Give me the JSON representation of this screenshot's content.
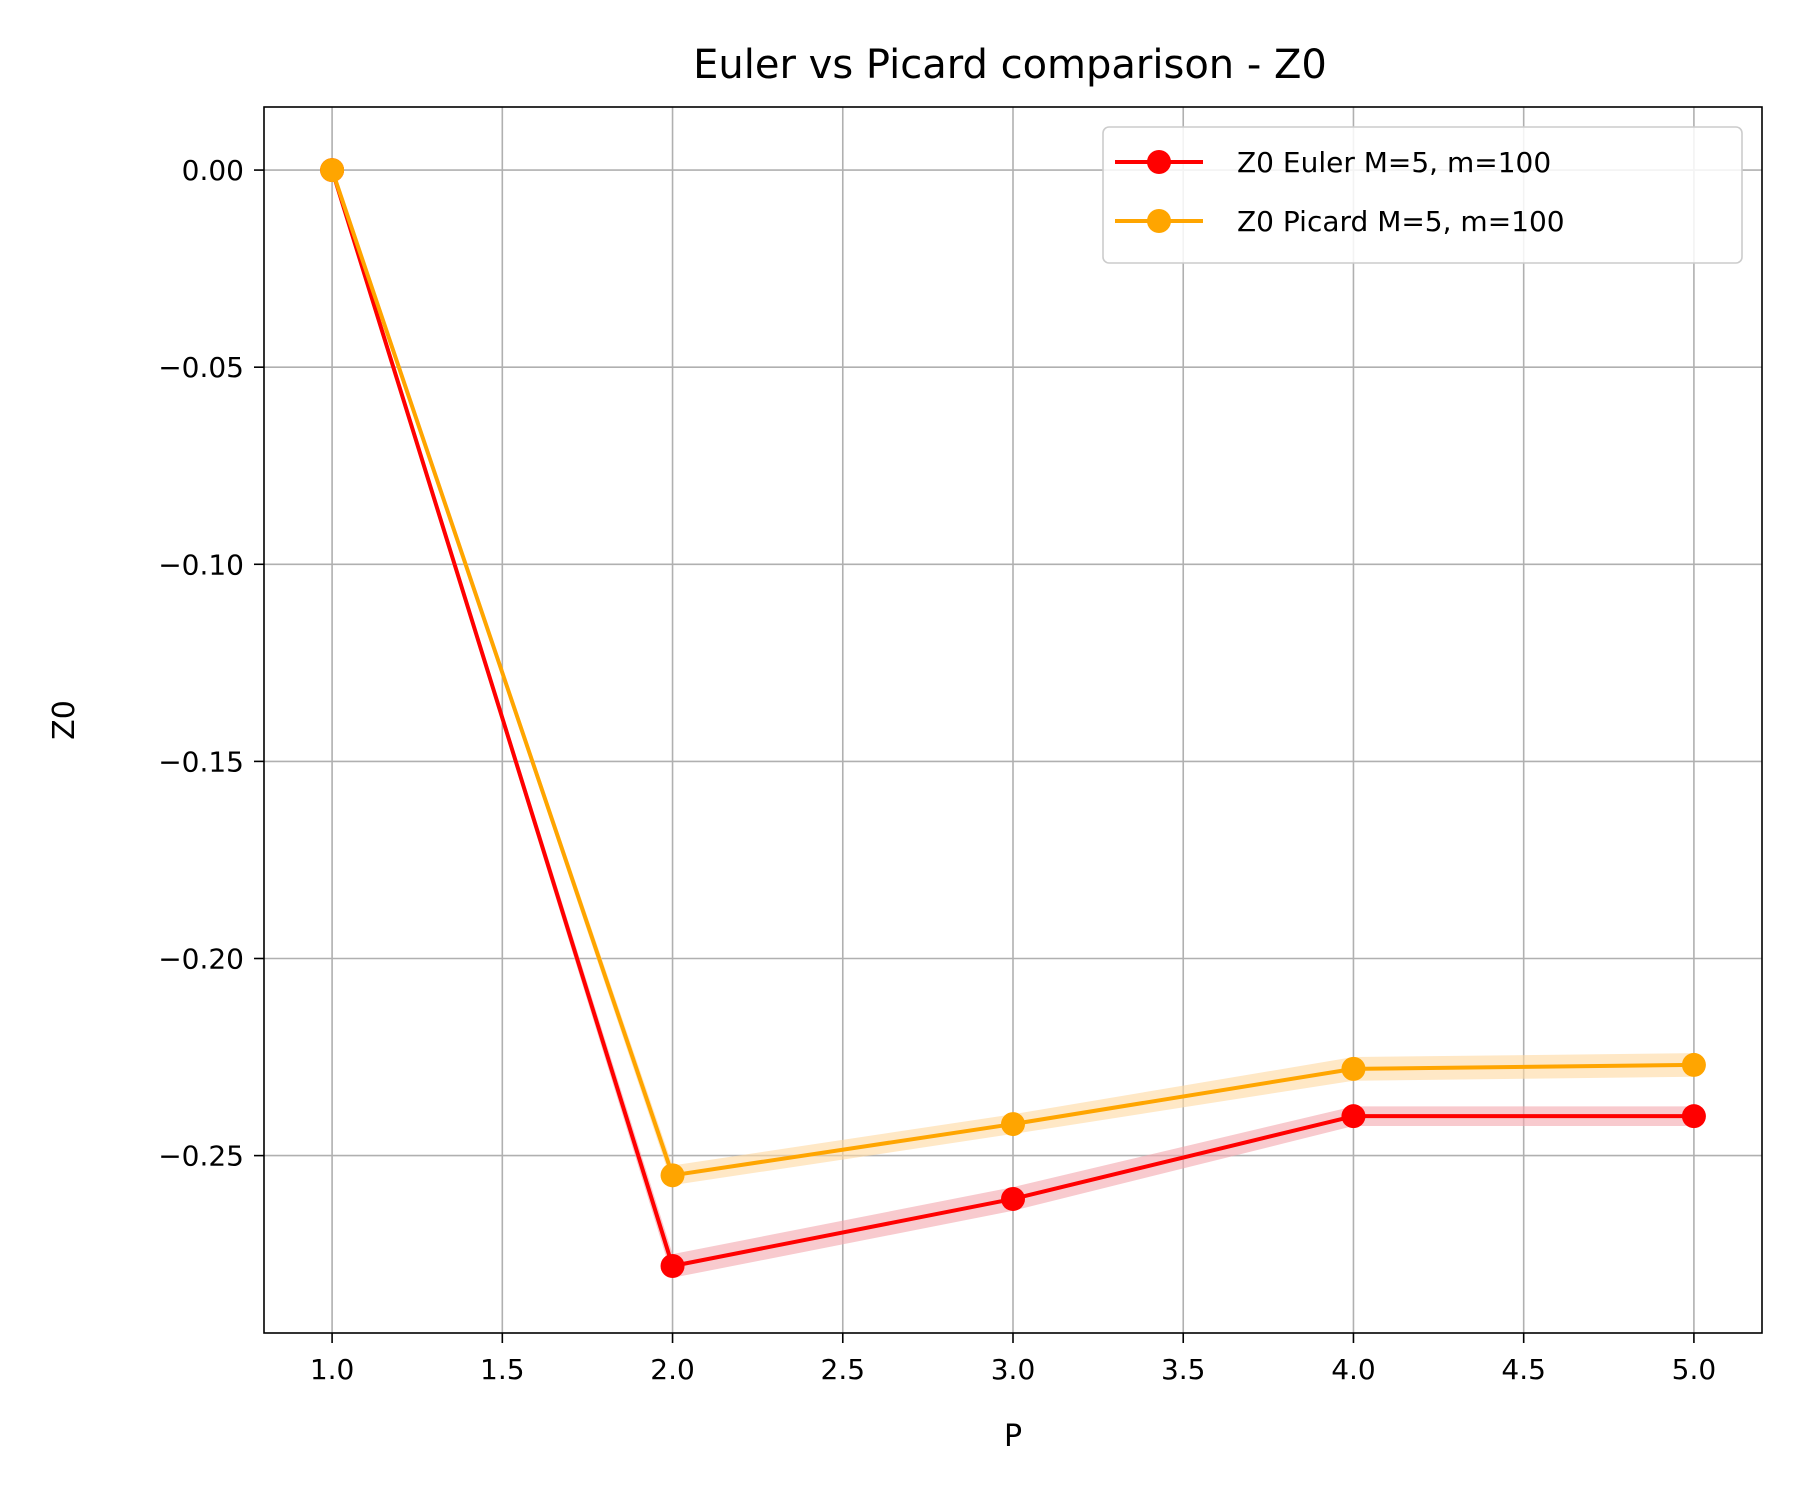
{
  "chart_data": {
    "type": "line",
    "title": "Euler vs Picard comparison - Z0",
    "xlabel": "P",
    "ylabel": "Z0",
    "xlim": [
      0.8,
      5.2
    ],
    "ylim": [
      -0.295,
      0.016
    ],
    "xticks": [
      1.0,
      1.5,
      2.0,
      2.5,
      3.0,
      3.5,
      4.0,
      4.5,
      5.0
    ],
    "xtick_labels": [
      "1.0",
      "1.5",
      "2.0",
      "2.5",
      "3.0",
      "3.5",
      "4.0",
      "4.5",
      "5.0"
    ],
    "yticks": [
      0.0,
      -0.05,
      -0.1,
      -0.15,
      -0.2,
      -0.25
    ],
    "ytick_labels": [
      "0.00",
      "−0.05",
      "−0.10",
      "−0.15",
      "−0.20",
      "−0.25"
    ],
    "grid": true,
    "legend_position": "top-right",
    "series": [
      {
        "name": "Z0 Euler M=5, m=100",
        "color": "#ff0000",
        "band_color": "#f4a6ae",
        "x": [
          1,
          2,
          3,
          4,
          5
        ],
        "y": [
          0.0,
          -0.278,
          -0.261,
          -0.24,
          -0.24
        ],
        "band": [
          0.0,
          0.003,
          0.003,
          0.0025,
          0.0025
        ]
      },
      {
        "name": "Z0 Picard M=5, m=100",
        "color": "#ffa500",
        "band_color": "#ffd9a0",
        "x": [
          1,
          2,
          3,
          4,
          5
        ],
        "y": [
          0.0,
          -0.255,
          -0.242,
          -0.228,
          -0.227
        ],
        "band": [
          0.0,
          0.0025,
          0.0025,
          0.003,
          0.003
        ]
      }
    ]
  }
}
